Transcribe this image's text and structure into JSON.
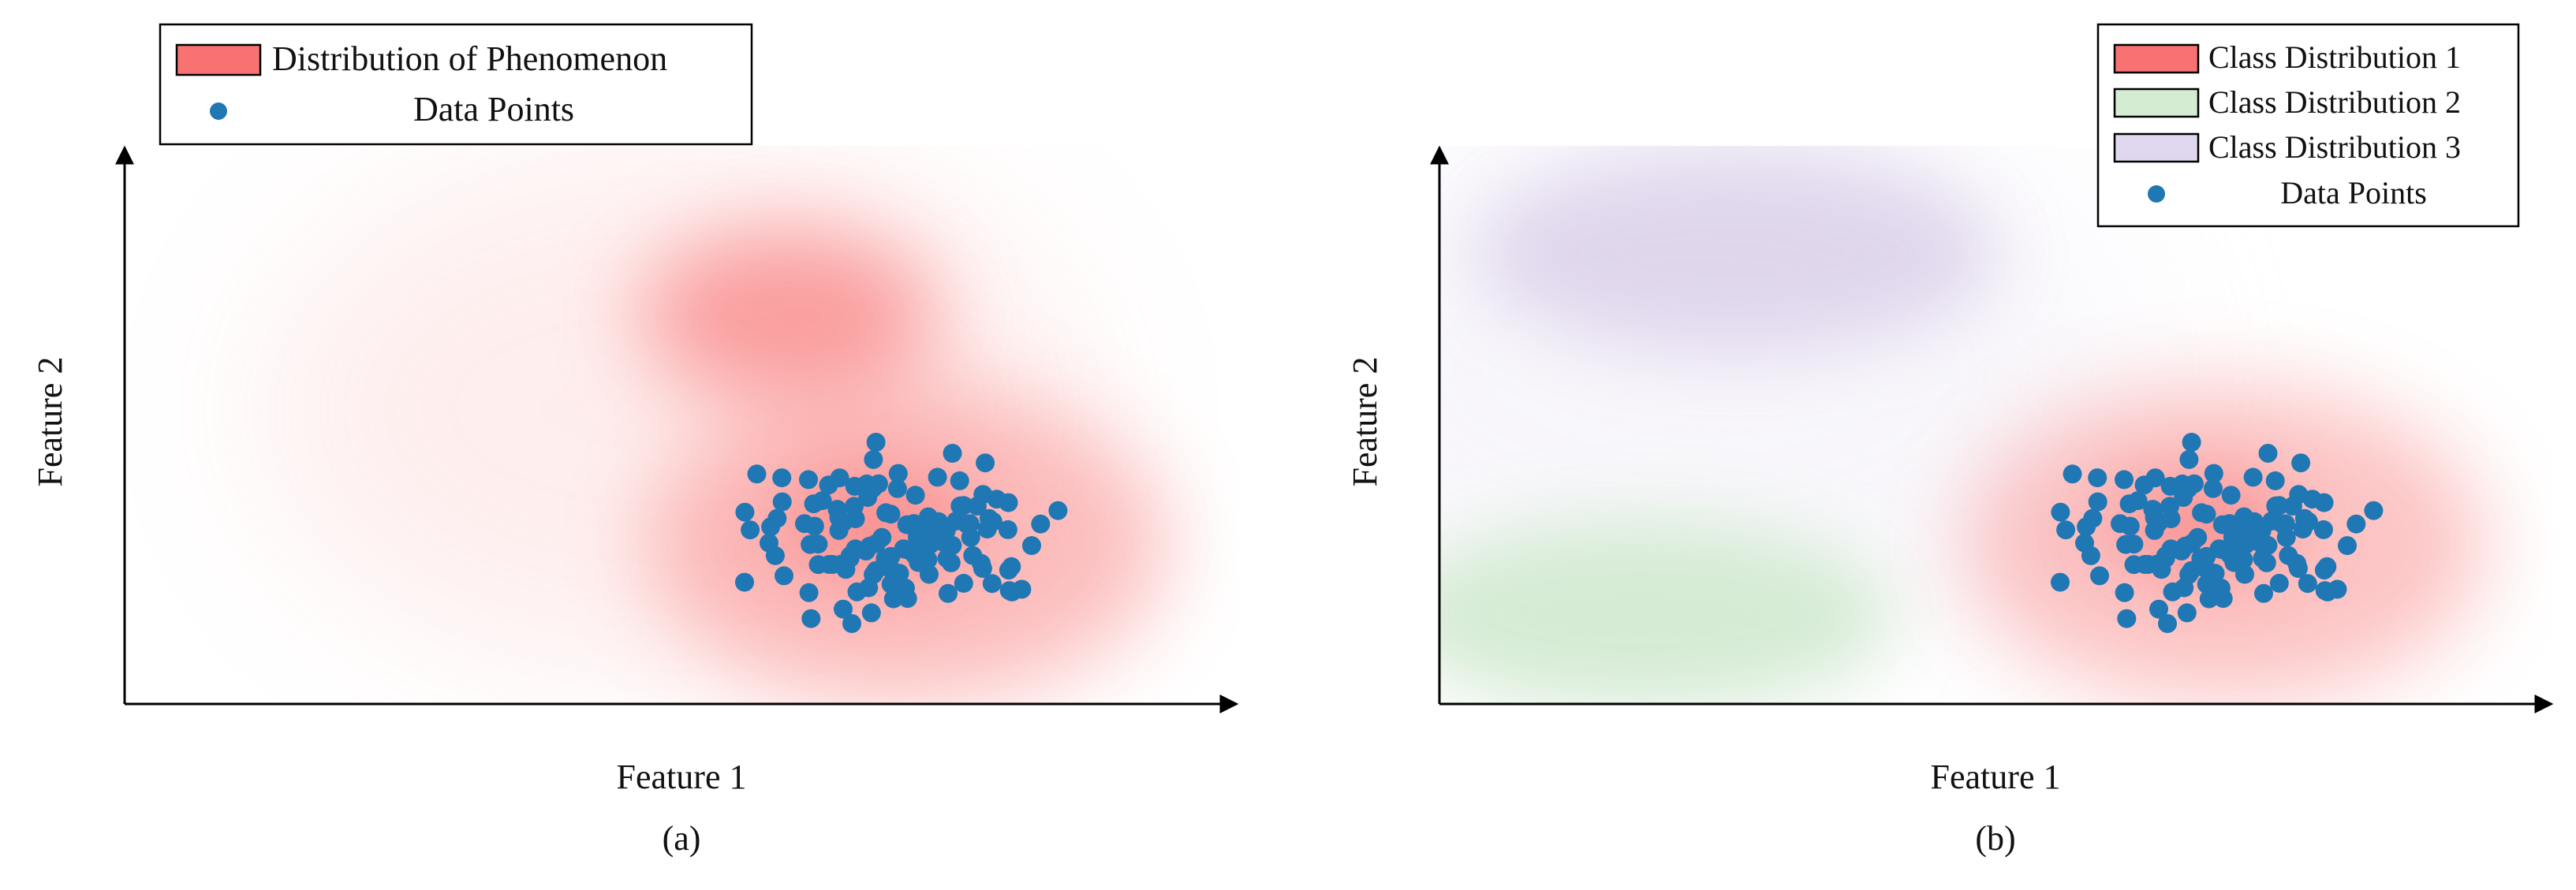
{
  "panels": [
    {
      "legend": {
        "items": [
          {
            "label": "Distribution of Phenomenon",
            "color": "#f87272"
          },
          {
            "label": "Data Points",
            "color": "#1f77b4"
          }
        ]
      },
      "xlabel": "Feature 1",
      "ylabel": "Feature 2",
      "caption": "(a)"
    },
    {
      "legend": {
        "items": [
          {
            "label": "Class Distribution 1",
            "color": "#f87272"
          },
          {
            "label": "Class Distribution 2",
            "color": "#d3ecd2"
          },
          {
            "label": "Class Distribution 3",
            "color": "#e0d8ee"
          },
          {
            "label": "Data Points",
            "color": "#1f77b4"
          }
        ]
      },
      "xlabel": "Feature 1",
      "ylabel": "Feature 2",
      "caption": "(b)"
    }
  ]
}
